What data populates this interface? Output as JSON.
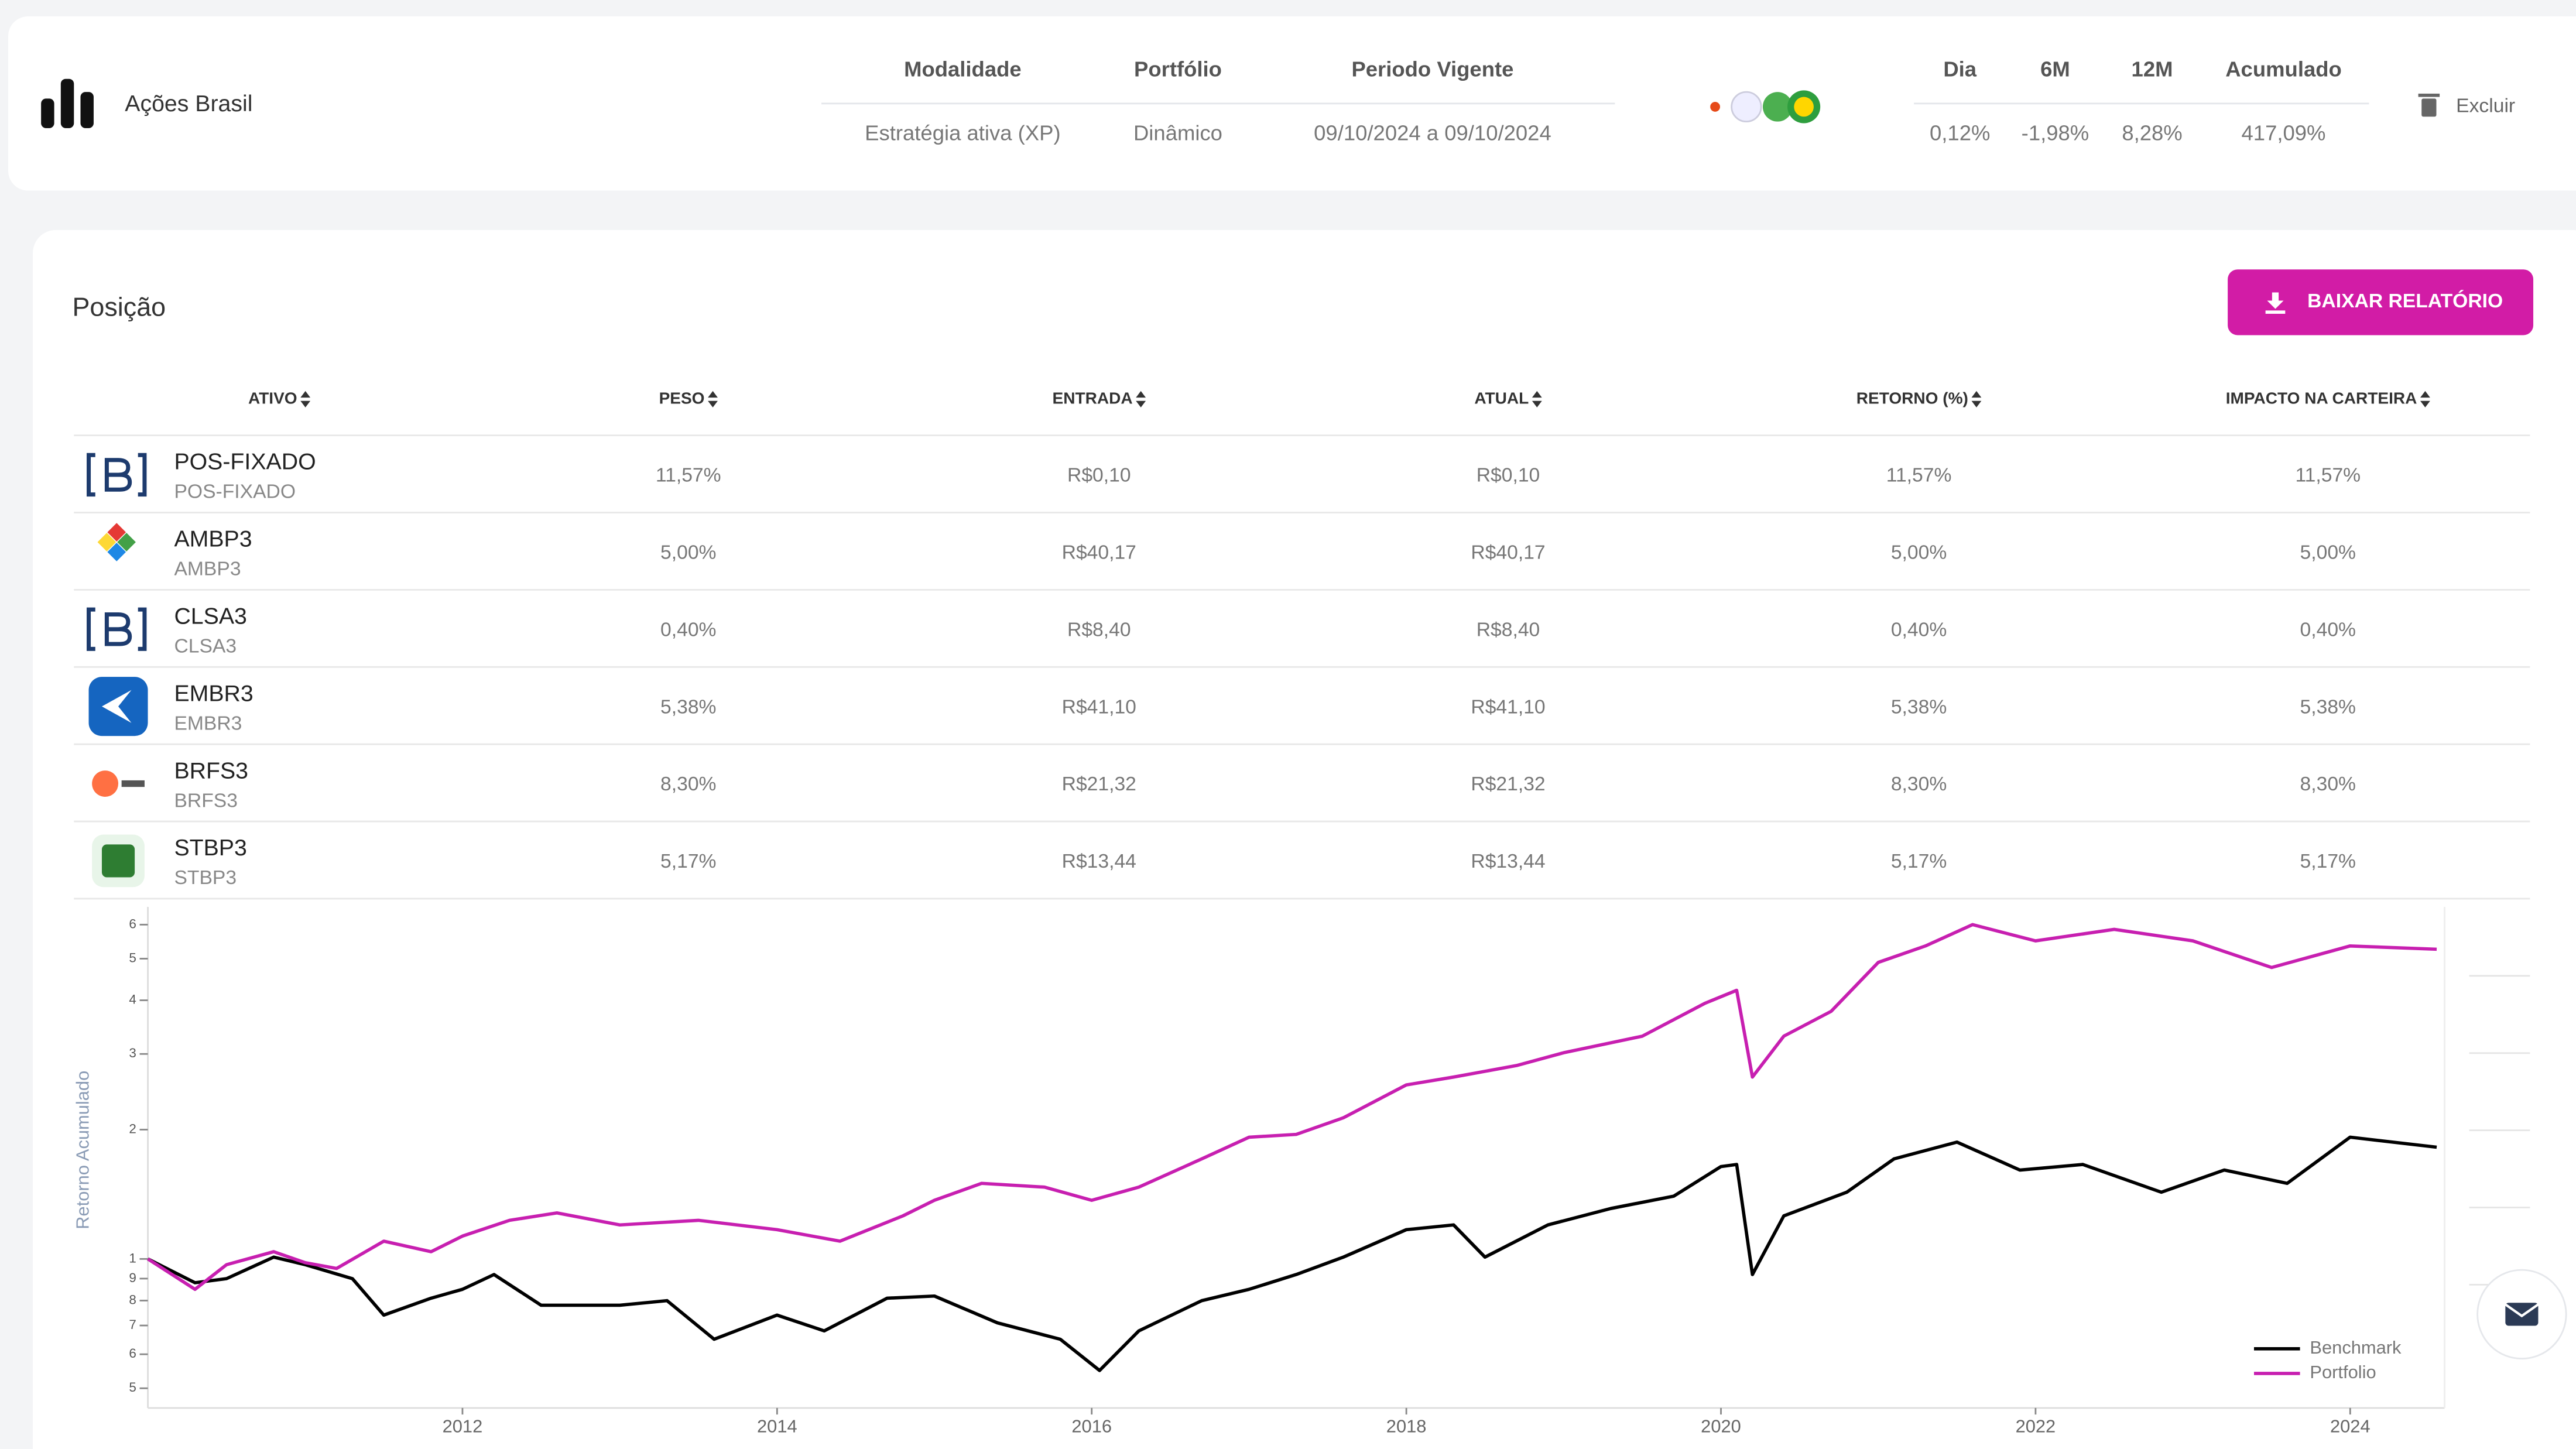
{
  "header": {
    "title": "Ações Brasil",
    "fields": [
      {
        "label": "Modalidade",
        "value": "Estratégia ativa (XP)"
      },
      {
        "label": "Portfólio",
        "value": "Dinâmico"
      },
      {
        "label": "Periodo Vigente",
        "value": "09/10/2024 a 09/10/2024"
      }
    ],
    "returns": [
      {
        "label": "Dia",
        "value": "0,12%"
      },
      {
        "label": "6M",
        "value": "-1,98%"
      },
      {
        "label": "12M",
        "value": "8,28%"
      },
      {
        "label": "Acumulado",
        "value": "417,09%"
      }
    ],
    "delete": "Excluir"
  },
  "position": {
    "title": "Posição",
    "button": "BAIXAR RELATÓRIO",
    "columns": [
      "ATIVO",
      "PESO",
      "ENTRADA",
      "ATUAL",
      "RETORNO (%)",
      "IMPACTO NA CARTEIRA"
    ],
    "rows": [
      {
        "name": "POS-FIXADO",
        "code": "POS-FIXADO",
        "cells": [
          "11,57%",
          "R$0,10",
          "R$0,10",
          "11,57%",
          "11,57%"
        ]
      },
      {
        "name": "AMBP3",
        "code": "AMBP3",
        "cells": [
          "5,00%",
          "R$40,17",
          "R$40,17",
          "5,00%",
          "5,00%"
        ]
      },
      {
        "name": "CLSA3",
        "code": "CLSA3",
        "cells": [
          "0,40%",
          "R$8,40",
          "R$8,40",
          "0,40%",
          "0,40%"
        ]
      },
      {
        "name": "EMBR3",
        "code": "EMBR3",
        "cells": [
          "5,38%",
          "R$41,10",
          "R$41,10",
          "5,38%",
          "5,38%"
        ]
      },
      {
        "name": "BRFS3",
        "code": "BRFS3",
        "cells": [
          "8,30%",
          "R$21,32",
          "R$21,32",
          "8,30%",
          "8,30%"
        ]
      },
      {
        "name": "STBP3",
        "code": "STBP3",
        "cells": [
          "5,17%",
          "R$13,44",
          "R$13,44",
          "5,17%",
          "5,17%"
        ]
      }
    ]
  },
  "chart_data": {
    "type": "line",
    "y_label": "Retorno Acumulado",
    "log_y": true,
    "legend": "lower right",
    "xlim": [
      2010,
      2024.6
    ],
    "xticks": [
      2012,
      2014,
      2016,
      2018,
      2020,
      2022,
      2024
    ],
    "ylim": [
      0.45,
      6.6
    ],
    "yticks": [
      {
        "value": 0.5,
        "label": "5"
      },
      {
        "value": 0.6,
        "label": "6"
      },
      {
        "value": 0.7,
        "label": "7"
      },
      {
        "value": 0.8,
        "label": "8"
      },
      {
        "value": 0.9,
        "label": "9"
      },
      1,
      2,
      3,
      4,
      5,
      6
    ],
    "series": [
      {
        "name": "Benchmark",
        "color": "#000000",
        "x": [
          2010.0,
          2010.3,
          2010.5,
          2010.8,
          2011.0,
          2011.3,
          2011.5,
          2011.8,
          2012.0,
          2012.2,
          2012.5,
          2013.0,
          2013.3,
          2013.6,
          2014.0,
          2014.3,
          2014.7,
          2015.0,
          2015.4,
          2015.8,
          2016.05,
          2016.3,
          2016.7,
          2017.0,
          2017.3,
          2017.6,
          2018.0,
          2018.3,
          2018.5,
          2018.9,
          2019.3,
          2019.7,
          2020.0,
          2020.1,
          2020.2,
          2020.4,
          2020.8,
          2021.1,
          2021.5,
          2021.9,
          2022.3,
          2022.8,
          2023.2,
          2023.6,
          2024.0,
          2024.55
        ],
        "values": [
          1.0,
          0.88,
          0.9,
          1.01,
          0.97,
          0.9,
          0.74,
          0.81,
          0.85,
          0.92,
          0.78,
          0.78,
          0.8,
          0.65,
          0.74,
          0.68,
          0.81,
          0.82,
          0.71,
          0.65,
          0.55,
          0.68,
          0.8,
          0.85,
          0.92,
          1.01,
          1.17,
          1.2,
          1.01,
          1.2,
          1.31,
          1.4,
          1.64,
          1.66,
          0.92,
          1.26,
          1.43,
          1.71,
          1.87,
          1.61,
          1.66,
          1.43,
          1.61,
          1.5,
          1.92,
          1.82
        ]
      },
      {
        "name": "Portfolio",
        "color": "#c71fb0",
        "x": [
          2010.0,
          2010.3,
          2010.5,
          2010.8,
          2011.0,
          2011.2,
          2011.5,
          2011.8,
          2012.0,
          2012.3,
          2012.6,
          2013.0,
          2013.5,
          2014.0,
          2014.4,
          2014.8,
          2015.0,
          2015.3,
          2015.7,
          2016.0,
          2016.3,
          2016.7,
          2017.0,
          2017.3,
          2017.6,
          2018.0,
          2018.3,
          2018.7,
          2019.0,
          2019.5,
          2019.9,
          2020.1,
          2020.2,
          2020.4,
          2020.7,
          2021.0,
          2021.3,
          2021.6,
          2022.0,
          2022.5,
          2023.0,
          2023.5,
          2024.0,
          2024.55
        ],
        "values": [
          1.0,
          0.85,
          0.97,
          1.04,
          0.98,
          0.95,
          1.1,
          1.04,
          1.13,
          1.23,
          1.28,
          1.2,
          1.23,
          1.17,
          1.1,
          1.26,
          1.37,
          1.5,
          1.47,
          1.37,
          1.47,
          1.71,
          1.92,
          1.95,
          2.13,
          2.54,
          2.65,
          2.82,
          3.02,
          3.3,
          3.94,
          4.22,
          2.65,
          3.3,
          3.77,
          4.9,
          5.35,
          6.0,
          5.5,
          5.85,
          5.5,
          4.77,
          5.35,
          5.26
        ]
      }
    ]
  }
}
